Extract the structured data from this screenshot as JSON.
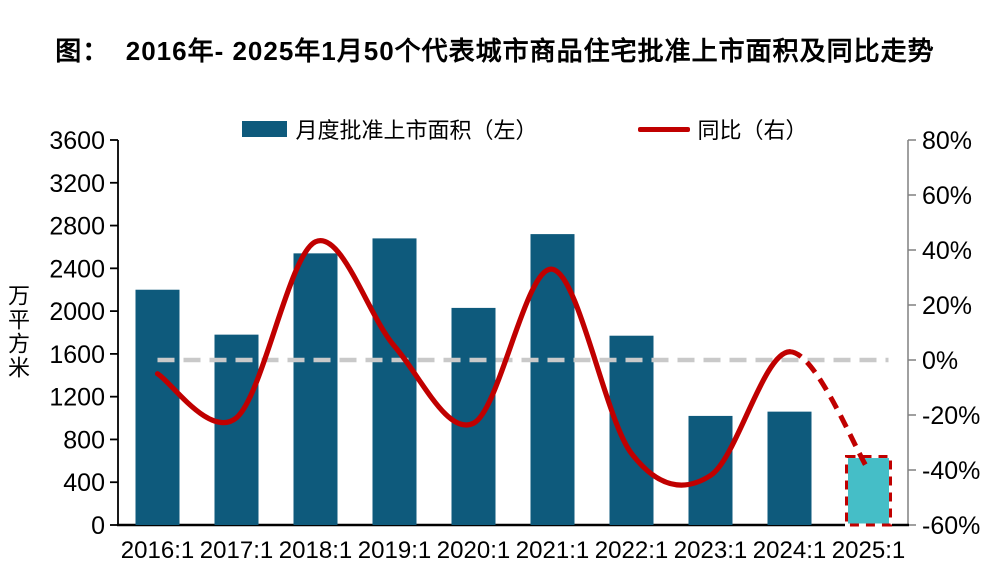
{
  "title": "图：  2016年- 2025年1月50个代表城市商品住宅批准上市面积及同比走势",
  "legend": {
    "bar_label": "月度批准上市面积（左）",
    "line_label": "同比（右）"
  },
  "chart_data": {
    "type": "bar+line combo",
    "categories": [
      "2016:1",
      "2017:1",
      "2018:1",
      "2019:1",
      "2020:1",
      "2021:1",
      "2022:1",
      "2023:1",
      "2024:1",
      "2025:1"
    ],
    "series": [
      {
        "name": "月度批准上市面积（左）",
        "type": "bar",
        "axis": "left",
        "values": [
          2200,
          1780,
          2540,
          2680,
          2030,
          2720,
          1770,
          1020,
          1060,
          640
        ],
        "highlight_last": true,
        "highlight_note": "2025:1 bar drawn in light teal with red dashed border"
      },
      {
        "name": "同比（右）",
        "type": "line",
        "axis": "right",
        "values_pct": [
          -5,
          -21,
          43,
          5,
          -23,
          33,
          -34,
          -42,
          3,
          -40
        ],
        "dashed_from_index": 8,
        "smooth": true
      }
    ],
    "left_axis": {
      "label": "万平方米",
      "min": 0,
      "max": 3600,
      "step": 400,
      "ticks": [
        3600,
        3200,
        2800,
        2400,
        2000,
        1600,
        1200,
        800,
        400,
        0
      ]
    },
    "right_axis": {
      "min": -60,
      "max": 80,
      "step": 20,
      "ticks": [
        "80%",
        "60%",
        "40%",
        "20%",
        "0%",
        "-20%",
        "-40%",
        "-60%"
      ]
    },
    "zero_line": {
      "style": "dashed",
      "at_pct": 0,
      "color": "#c9c9c9"
    },
    "colors": {
      "bar": "#0e5a7c",
      "bar_highlight": "#45bec7",
      "highlight_border": "#c00000",
      "highlight_border_alt": "#ffffff",
      "line": "#c00000",
      "axis_left": "#000000",
      "axis_right": "#808080"
    },
    "legend_position": "top",
    "grid": "off"
  }
}
